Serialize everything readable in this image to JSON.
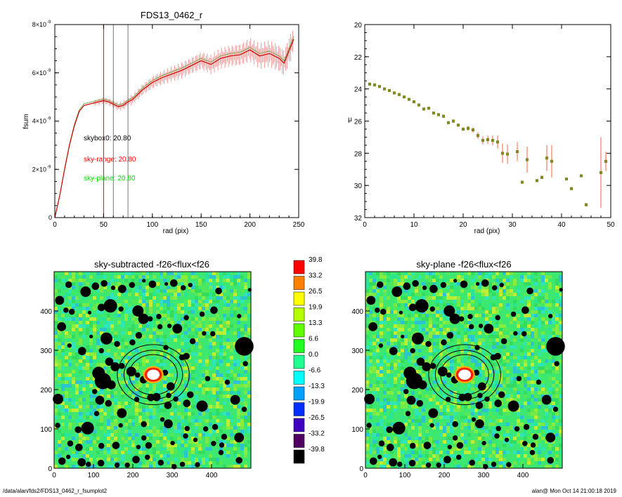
{
  "chart_data": [
    {
      "type": "line",
      "title": "FDS13_0462_r",
      "xlabel": "rad (pix)",
      "ylabel": "fsum",
      "xlim": [
        0,
        250
      ],
      "ylim": [
        0,
        8e-09
      ],
      "xticks": [
        "0",
        "50",
        "100",
        "150",
        "200",
        "250"
      ],
      "yticks": [
        {
          "value": 0,
          "mantissa": "0",
          "exp": ""
        },
        {
          "value": 2e-09,
          "mantissa": "2×10",
          "exp": "-9"
        },
        {
          "value": 4e-09,
          "mantissa": "4×10",
          "exp": "-9"
        },
        {
          "value": 6e-09,
          "mantissa": "6×10",
          "exp": "-9"
        },
        {
          "value": 8e-09,
          "mantissa": "8×10",
          "exp": "-9"
        }
      ],
      "annotations": [
        {
          "text": "skybox0: 20.80",
          "color": "#000000"
        },
        {
          "text": "sky-range: 20.80",
          "color": "#ff0000"
        },
        {
          "text": "sky-plane: 20.80",
          "color": "#00dd00"
        }
      ],
      "vlines": [
        {
          "x": 50,
          "color": "#ff0000"
        },
        {
          "x": 60,
          "color": "#777777"
        },
        {
          "x": 75,
          "color": "#777777"
        }
      ],
      "series": [
        {
          "color": "#cc0000",
          "x": [
            0,
            5,
            10,
            15,
            20,
            25,
            30,
            40,
            50,
            55,
            60,
            65,
            70,
            75,
            80,
            90,
            100,
            110,
            120,
            130,
            140,
            150,
            160,
            170,
            180,
            190,
            200,
            210,
            220,
            230,
            235,
            240,
            245
          ],
          "y": [
            0,
            9e-10,
            2e-09,
            3e-09,
            3.8e-09,
            4.4e-09,
            4.65e-09,
            4.75e-09,
            4.85e-09,
            4.8e-09,
            4.7e-09,
            4.6e-09,
            4.65e-09,
            4.8e-09,
            4.9e-09,
            5.3e-09,
            5.6e-09,
            5.8e-09,
            5.95e-09,
            6.1e-09,
            6.3e-09,
            6.5e-09,
            6.35e-09,
            6.6e-09,
            6.7e-09,
            6.75e-09,
            6.95e-09,
            6.7e-09,
            6.8e-09,
            6.6e-09,
            6.4e-09,
            6.9e-09,
            7.4e-09
          ]
        }
      ]
    },
    {
      "type": "scatter",
      "title": "",
      "xlabel": "rad (pix)",
      "ylabel": "μ",
      "xlim": [
        0,
        50
      ],
      "ylim": [
        32,
        20
      ],
      "xticks": [
        "0",
        "10",
        "20",
        "30",
        "40",
        "50"
      ],
      "yticks": [
        "20",
        "22",
        "24",
        "26",
        "28",
        "30",
        "32"
      ],
      "points": [
        {
          "x": 1,
          "y": 23.7,
          "err": 0.05
        },
        {
          "x": 2,
          "y": 23.75,
          "err": 0.05
        },
        {
          "x": 3,
          "y": 23.85,
          "err": 0.05
        },
        {
          "x": 4,
          "y": 24.0,
          "err": 0.05
        },
        {
          "x": 5,
          "y": 24.1,
          "err": 0.05
        },
        {
          "x": 6,
          "y": 24.25,
          "err": 0.05
        },
        {
          "x": 7,
          "y": 24.35,
          "err": 0.05
        },
        {
          "x": 8,
          "y": 24.5,
          "err": 0.05
        },
        {
          "x": 9,
          "y": 24.65,
          "err": 0.05
        },
        {
          "x": 10,
          "y": 24.8,
          "err": 0.05
        },
        {
          "x": 11,
          "y": 25.0,
          "err": 0.05
        },
        {
          "x": 12,
          "y": 25.25,
          "err": 0.05
        },
        {
          "x": 13,
          "y": 25.2,
          "err": 0.05
        },
        {
          "x": 14,
          "y": 25.5,
          "err": 0.05
        },
        {
          "x": 15,
          "y": 25.6,
          "err": 0.05
        },
        {
          "x": 16,
          "y": 25.7,
          "err": 0.1
        },
        {
          "x": 17,
          "y": 26.1,
          "err": 0.1
        },
        {
          "x": 18,
          "y": 26.0,
          "err": 0.1
        },
        {
          "x": 19,
          "y": 26.25,
          "err": 0.1
        },
        {
          "x": 20,
          "y": 26.5,
          "err": 0.1
        },
        {
          "x": 21,
          "y": 26.45,
          "err": 0.15
        },
        {
          "x": 22,
          "y": 26.55,
          "err": 0.15
        },
        {
          "x": 23,
          "y": 26.9,
          "err": 0.2
        },
        {
          "x": 24,
          "y": 27.2,
          "err": 0.25
        },
        {
          "x": 25,
          "y": 27.15,
          "err": 0.25
        },
        {
          "x": 26,
          "y": 27.2,
          "err": 0.3
        },
        {
          "x": 27,
          "y": 27.3,
          "err": 0.4
        },
        {
          "x": 28,
          "y": 28.0,
          "err": 0.6
        },
        {
          "x": 29,
          "y": 28.05,
          "err": 0.6
        },
        {
          "x": 31,
          "y": 27.9,
          "err": 0.6
        },
        {
          "x": 32,
          "y": 29.8,
          "err": 0.05
        },
        {
          "x": 33,
          "y": 28.4,
          "err": 0.8
        },
        {
          "x": 35,
          "y": 29.7,
          "err": 0.05
        },
        {
          "x": 36,
          "y": 29.5,
          "err": 0.1
        },
        {
          "x": 37,
          "y": 28.3,
          "err": 0.8
        },
        {
          "x": 38,
          "y": 28.5,
          "err": 1.0
        },
        {
          "x": 41,
          "y": 29.6,
          "err": 0.05
        },
        {
          "x": 42,
          "y": 30.2,
          "err": 0.1
        },
        {
          "x": 44,
          "y": 29.4,
          "err": 0.05
        },
        {
          "x": 45,
          "y": 31.2,
          "err": 0.1
        },
        {
          "x": 48,
          "y": 29.2,
          "err": 2.2
        },
        {
          "x": 49,
          "y": 28.5,
          "err": 0.6
        }
      ]
    },
    {
      "type": "heatmap",
      "title": "sky-subtracted -f26<flux<f26",
      "xlim": [
        0,
        500
      ],
      "ylim": [
        0,
        500
      ],
      "xticks": [
        "0",
        "100",
        "200",
        "300",
        "400"
      ],
      "yticks": [
        "0",
        "100",
        "200",
        "300",
        "400"
      ]
    },
    {
      "type": "heatmap",
      "title": "sky-plane -f26<flux<f26",
      "xlim": [
        0,
        500
      ],
      "ylim": [
        0,
        500
      ],
      "xticks": [
        "0",
        "100",
        "200",
        "300",
        "400"
      ],
      "yticks": [
        "0",
        "100",
        "200",
        "300",
        "400"
      ]
    }
  ],
  "colorbar": {
    "levels": [
      {
        "label": "39.8",
        "color": "#ff0000"
      },
      {
        "label": "33.2",
        "color": "#ff8000"
      },
      {
        "label": "26.5",
        "color": "#ffff00"
      },
      {
        "label": "19.9",
        "color": "#b4ff00"
      },
      {
        "label": "13.3",
        "color": "#60ff00"
      },
      {
        "label": "6.6",
        "color": "#20ff20"
      },
      {
        "label": "0.0",
        "color": "#20ff90"
      },
      {
        "label": "-6.6",
        "color": "#00ffff"
      },
      {
        "label": "-13.3",
        "color": "#00a0ff"
      },
      {
        "label": "-19.9",
        "color": "#0030ff"
      },
      {
        "label": "-26.5",
        "color": "#4000c0"
      },
      {
        "label": "-33.2",
        "color": "#500060"
      },
      {
        "label": "-39.8",
        "color": "#000000"
      }
    ]
  },
  "footer": {
    "path": "/data/alan/fds2/FDS13_0462_r_fsumplot2",
    "stamp": "alan@  Mon Oct 14 21:00:18 2019"
  }
}
